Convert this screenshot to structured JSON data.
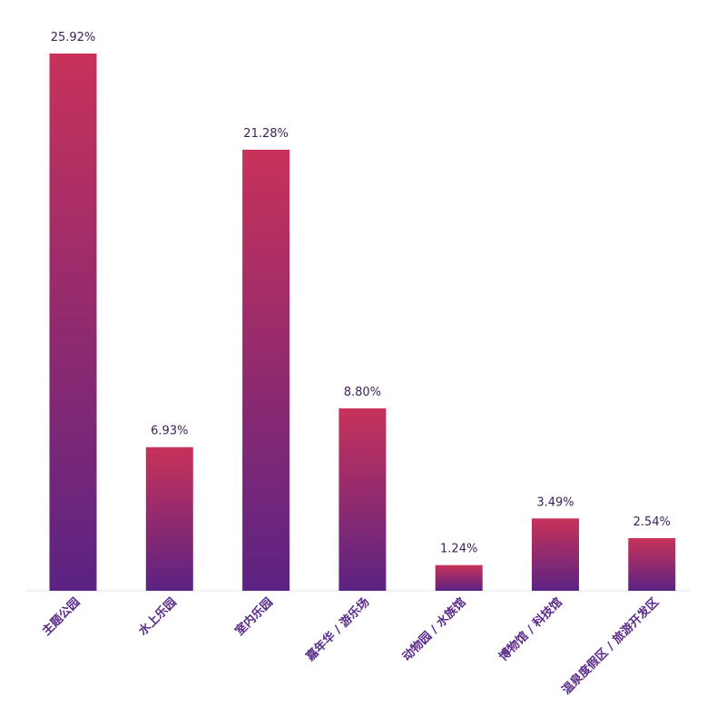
{
  "chart_data": {
    "type": "bar",
    "categories": [
      "主题公园",
      "水上乐园",
      "室内乐园",
      "嘉年华 / 游乐场",
      "动物园 / 水族馆",
      "博物馆 / 科技馆",
      "温泉度假区 / 旅游开发区"
    ],
    "values": [
      25.92,
      6.93,
      21.28,
      8.8,
      1.24,
      3.49,
      2.54
    ],
    "value_labels": [
      "25.92%",
      "6.93%",
      "21.28%",
      "8.80%",
      "1.24%",
      "3.49%",
      "2.54%"
    ],
    "unit": "%",
    "ylim": [
      0,
      25.92
    ],
    "grid": false,
    "legend": "none",
    "colors": {
      "bar_top": "#c8325a",
      "bar_bottom": "#5b2383",
      "label_text": "#5a2a8a",
      "value_text": "#3b1f5c"
    }
  }
}
